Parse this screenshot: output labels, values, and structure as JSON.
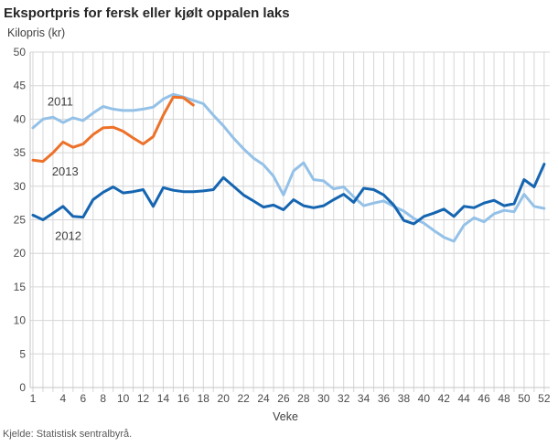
{
  "header": {
    "title": "Eksportpris for fersk eller kjølt oppalen laks"
  },
  "footer": {
    "source": "Kjelde: Statistisk sentralbyrå."
  },
  "chart_data": {
    "type": "line",
    "title": "Eksportpris for fersk eller kjølt oppalen laks",
    "ylabel": "Kilopris (kr)",
    "xlabel": "Veke",
    "ylim": [
      0,
      50
    ],
    "y_tick_step": 5,
    "y_ticks": [
      0,
      5,
      10,
      15,
      20,
      25,
      30,
      35,
      40,
      45,
      50
    ],
    "x_weeks": {
      "min": 1,
      "max": 52
    },
    "x_ticks": [
      1,
      4,
      6,
      8,
      10,
      12,
      14,
      16,
      18,
      20,
      22,
      24,
      26,
      28,
      30,
      32,
      34,
      36,
      38,
      40,
      42,
      44,
      46,
      48,
      50,
      52
    ],
    "grid": true,
    "legend_position": "inline-labels",
    "colors": {
      "grid": "#d6d6d6",
      "axis": "#c4c4c4",
      "tick_text": "#4a4a4a"
    },
    "series": [
      {
        "name": "2011",
        "color": "#94c1e8",
        "start_week": 1,
        "label_anchor": {
          "week": 2.45,
          "value": 42.0
        },
        "values": [
          38.7,
          40.0,
          40.3,
          39.5,
          40.2,
          39.8,
          40.9,
          41.9,
          41.5,
          41.3,
          41.3,
          41.5,
          41.8,
          43.0,
          43.7,
          43.3,
          42.8,
          42.3,
          40.6,
          39.0,
          37.2,
          35.6,
          34.2,
          33.2,
          31.5,
          28.7,
          32.3,
          33.5,
          31.0,
          30.8,
          29.6,
          29.9,
          28.4,
          27.1,
          27.5,
          27.8,
          27.0,
          26.3,
          25.2,
          24.5,
          23.4,
          22.4,
          21.8,
          24.2,
          25.3,
          24.7,
          25.9,
          26.4,
          26.2,
          28.8,
          27.0,
          26.7
        ]
      },
      {
        "name": "2012",
        "color": "#1565b1",
        "start_week": 1,
        "label_anchor": {
          "week": 3.2,
          "value": 22.0
        },
        "values": [
          25.7,
          25.0,
          26.0,
          27.0,
          25.5,
          25.4,
          28.0,
          29.1,
          29.9,
          29.0,
          29.2,
          29.5,
          27.0,
          29.8,
          29.4,
          29.2,
          29.2,
          29.3,
          29.5,
          31.3,
          30.0,
          28.7,
          27.8,
          26.9,
          27.2,
          26.5,
          28.0,
          27.1,
          26.8,
          27.1,
          28.0,
          28.8,
          27.6,
          29.7,
          29.5,
          28.7,
          27.2,
          24.9,
          24.4,
          25.5,
          26.0,
          26.6,
          25.5,
          27.0,
          26.8,
          27.5,
          27.9,
          27.1,
          27.4,
          31.0,
          29.9,
          33.3
        ]
      },
      {
        "name": "2013",
        "color": "#ed7129",
        "start_week": 1,
        "label_anchor": {
          "week": 2.9,
          "value": 31.6
        },
        "values": [
          33.9,
          33.7,
          35.0,
          36.6,
          35.8,
          36.3,
          37.7,
          38.7,
          38.8,
          38.2,
          37.2,
          36.3,
          37.4,
          40.6,
          43.3,
          43.2,
          42.1
        ]
      }
    ]
  }
}
